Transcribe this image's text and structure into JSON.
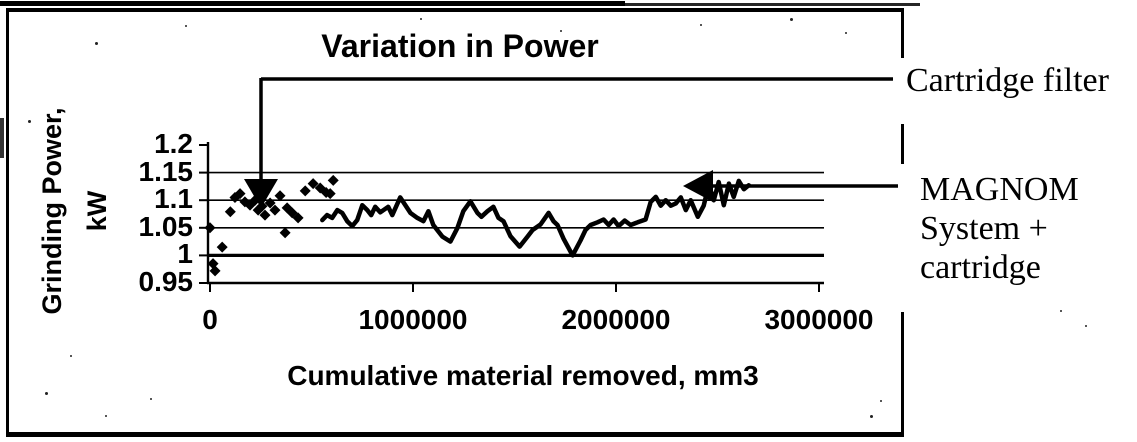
{
  "annotations": {
    "cartridge_filter": "Cartridge filter",
    "magnom_lines": [
      "MAGNOM",
      "System +",
      "cartridge"
    ]
  },
  "chart_data": {
    "type": "scatter",
    "title": "Variation in Power",
    "xlabel": "Cumulative material removed, mm3",
    "ylabel_lines": [
      "Grinding Power,",
      "kW"
    ],
    "xlim": [
      0,
      3000000
    ],
    "ylim": [
      0.95,
      1.2
    ],
    "grid": true,
    "legend_position": "none (arrow callouts instead)",
    "x_ticks": {
      "values": [
        0,
        1000000,
        2000000,
        3000000
      ],
      "labels": [
        "0",
        "1000000",
        "2000000",
        "3000000"
      ]
    },
    "y_ticks": {
      "values": [
        1.2,
        1.15,
        1.1,
        1.05,
        1.0,
        0.95
      ],
      "labels": [
        "1.2",
        "1.15",
        "1.1",
        "1.05",
        "1",
        "0.95"
      ]
    },
    "series": [
      {
        "name": "Cartridge filter",
        "type": "scatter",
        "marker": "diamond",
        "points": [
          [
            0,
            1.05
          ],
          [
            15000,
            0.985
          ],
          [
            25000,
            0.972
          ],
          [
            60000,
            1.015
          ],
          [
            100000,
            1.079
          ],
          [
            123000,
            1.105
          ],
          [
            148000,
            1.112
          ],
          [
            172000,
            1.097
          ],
          [
            197000,
            1.091
          ],
          [
            222000,
            1.1
          ],
          [
            237000,
            1.082
          ],
          [
            256000,
            1.089
          ],
          [
            271000,
            1.073
          ],
          [
            296000,
            1.095
          ],
          [
            320000,
            1.082
          ],
          [
            345000,
            1.108
          ],
          [
            370000,
            1.041
          ],
          [
            380000,
            1.086
          ],
          [
            405000,
            1.077
          ],
          [
            434000,
            1.068
          ],
          [
            469000,
            1.117
          ],
          [
            508000,
            1.13
          ],
          [
            543000,
            1.122
          ],
          [
            572000,
            1.114
          ],
          [
            592000,
            1.112
          ],
          [
            607000,
            1.136
          ]
        ]
      },
      {
        "name": "MAGNOM System + cartridge",
        "type": "line",
        "points": [
          [
            553000,
            1.064
          ],
          [
            577000,
            1.073
          ],
          [
            602000,
            1.068
          ],
          [
            627000,
            1.082
          ],
          [
            651000,
            1.077
          ],
          [
            676000,
            1.062
          ],
          [
            701000,
            1.053
          ],
          [
            725000,
            1.064
          ],
          [
            750000,
            1.091
          ],
          [
            775000,
            1.082
          ],
          [
            794000,
            1.073
          ],
          [
            814000,
            1.088
          ],
          [
            839000,
            1.078
          ],
          [
            878000,
            1.088
          ],
          [
            898000,
            1.073
          ],
          [
            937000,
            1.105
          ],
          [
            987000,
            1.077
          ],
          [
            1021000,
            1.068
          ],
          [
            1051000,
            1.062
          ],
          [
            1076000,
            1.08
          ],
          [
            1100000,
            1.055
          ],
          [
            1145000,
            1.034
          ],
          [
            1184000,
            1.025
          ],
          [
            1219000,
            1.05
          ],
          [
            1248000,
            1.08
          ],
          [
            1283000,
            1.098
          ],
          [
            1317000,
            1.077
          ],
          [
            1337000,
            1.07
          ],
          [
            1367000,
            1.08
          ],
          [
            1396000,
            1.088
          ],
          [
            1421000,
            1.068
          ],
          [
            1446000,
            1.062
          ],
          [
            1480000,
            1.035
          ],
          [
            1525000,
            1.016
          ],
          [
            1564000,
            1.034
          ],
          [
            1589000,
            1.046
          ],
          [
            1628000,
            1.056
          ],
          [
            1668000,
            1.077
          ],
          [
            1692000,
            1.062
          ],
          [
            1712000,
            1.055
          ],
          [
            1742000,
            1.03
          ],
          [
            1786000,
            1.0
          ],
          [
            1825000,
            1.027
          ],
          [
            1850000,
            1.046
          ],
          [
            1875000,
            1.055
          ],
          [
            1909000,
            1.06
          ],
          [
            1939000,
            1.065
          ],
          [
            1964000,
            1.055
          ],
          [
            1988000,
            1.065
          ],
          [
            2013000,
            1.053
          ],
          [
            2043000,
            1.063
          ],
          [
            2072000,
            1.055
          ],
          [
            2107000,
            1.06
          ],
          [
            2146000,
            1.065
          ],
          [
            2171000,
            1.097
          ],
          [
            2196000,
            1.106
          ],
          [
            2220000,
            1.09
          ],
          [
            2245000,
            1.1
          ],
          [
            2270000,
            1.09
          ],
          [
            2294000,
            1.094
          ],
          [
            2319000,
            1.105
          ],
          [
            2344000,
            1.082
          ],
          [
            2368000,
            1.1
          ],
          [
            2403000,
            1.07
          ],
          [
            2432000,
            1.09
          ],
          [
            2457000,
            1.128
          ],
          [
            2482000,
            1.1
          ],
          [
            2506000,
            1.133
          ],
          [
            2531000,
            1.091
          ],
          [
            2556000,
            1.13
          ],
          [
            2580000,
            1.106
          ],
          [
            2605000,
            1.135
          ],
          [
            2630000,
            1.12
          ],
          [
            2654000,
            1.127
          ]
        ]
      }
    ]
  }
}
